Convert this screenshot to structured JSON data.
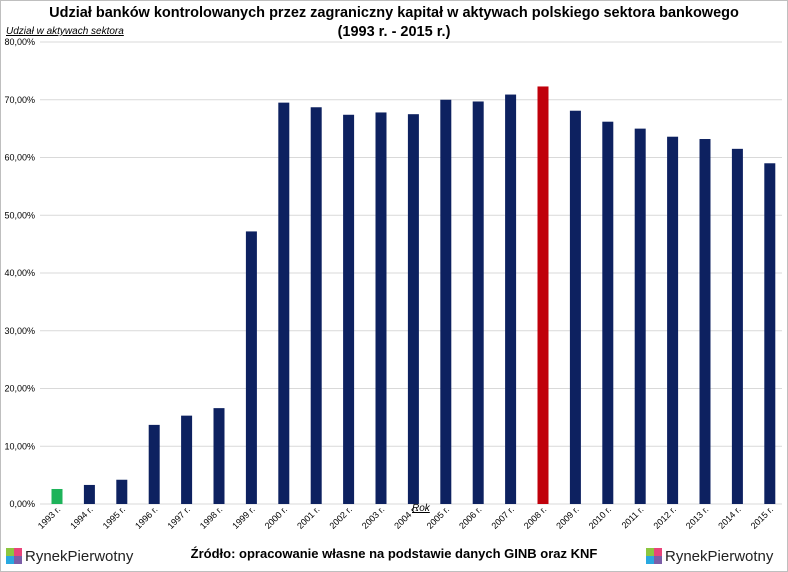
{
  "brand": {
    "logo_text_left": "RynekPierwotny",
    "logo_text_right": "RynekPierwotny",
    "colors": {
      "green": "#8cc63f",
      "pink": "#e8457a",
      "blue": "#29a8e0",
      "purple": "#7b5ea7"
    }
  },
  "source_note": "Źródło: opracowanie własne na podstawie danych GINB oraz KNF",
  "chart_data": {
    "type": "bar",
    "title_line1": "Udział banków kontrolowanych przez zagraniczny kapitał w aktywach polskiego sektora bankowego",
    "title_line2": "(1993 r. - 2015 r.)",
    "ylabel": "Udział w aktywach sektora",
    "xlabel": "Rok",
    "ylim": [
      0,
      80
    ],
    "yticks": [
      "0,00%",
      "10,00%",
      "20,00%",
      "30,00%",
      "40,00%",
      "50,00%",
      "60,00%",
      "70,00%",
      "80,00%"
    ],
    "grid": true,
    "categories": [
      "1993 r.",
      "1994 r.",
      "1995 r.",
      "1996 r.",
      "1997 r.",
      "1998 r.",
      "1999 r.",
      "2000 r.",
      "2001 r.",
      "2002 r.",
      "2003 r.",
      "2004 r.",
      "2005 r.",
      "2006 r.",
      "2007 r.",
      "2008 r.",
      "2009 r.",
      "2010 r.",
      "2011 r.",
      "2012 r.",
      "2013 r.",
      "2014 r.",
      "2015 r."
    ],
    "values": [
      2.6,
      3.3,
      4.2,
      13.7,
      15.3,
      16.6,
      47.2,
      69.5,
      68.7,
      67.4,
      67.8,
      67.5,
      70.0,
      69.7,
      70.9,
      72.3,
      68.1,
      66.2,
      65.0,
      63.6,
      63.2,
      61.5,
      59.0
    ],
    "colors": {
      "default": "#0d2160",
      "first": "#1eb35a",
      "highlight": "#c0000b"
    },
    "highlight_index": 15
  }
}
